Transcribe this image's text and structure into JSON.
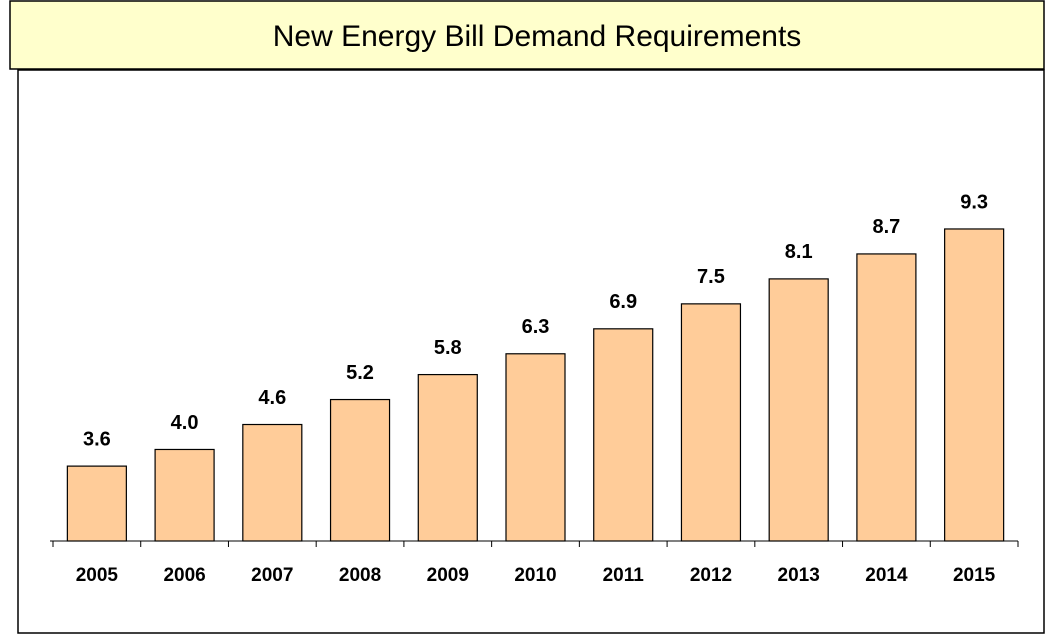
{
  "chart_data": {
    "type": "bar",
    "title": "New Energy Bill Demand Requirements",
    "categories": [
      "2005",
      "2006",
      "2007",
      "2008",
      "2009",
      "2010",
      "2011",
      "2012",
      "2013",
      "2014",
      "2015"
    ],
    "values": [
      3.6,
      4.0,
      4.6,
      5.2,
      5.8,
      6.3,
      6.9,
      7.5,
      8.1,
      8.7,
      9.3
    ],
    "value_labels": [
      "3.6",
      "4.0",
      "4.6",
      "5.2",
      "5.8",
      "6.3",
      "6.9",
      "7.5",
      "8.1",
      "8.7",
      "9.3"
    ],
    "color": "#ffcc99",
    "ylim": [
      1.8,
      12.4
    ]
  }
}
